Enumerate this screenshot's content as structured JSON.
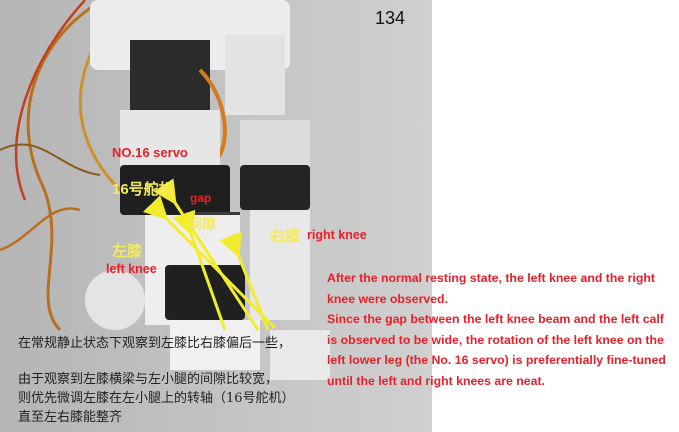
{
  "page_number": "134",
  "labels": {
    "servo_en": "NO.16 servo",
    "servo_cn": "16号舵机",
    "gap_en": "gap",
    "gap_cn": "间隙",
    "left_knee_cn": "左膝",
    "left_knee_en": "left knee",
    "right_knee_cn": "右膝",
    "right_knee_en": "right knee"
  },
  "chinese_text": {
    "line1": "在常规静止状态下观察到左膝比右膝偏后一些，",
    "line2": "由于观察到左膝横梁与左小腿的间隙比较宽，",
    "line3": "则优先微调左膝在左小腿上的转轴（16号舵机）",
    "line4": "直至左右膝能整齐"
  },
  "english_text": {
    "para1": "After the normal resting state, the left knee and the right knee were observed.",
    "para2": "Since the gap between the left knee beam and the left calf is observed to be wide, the rotation of the left knee on the left lower leg (the No. 16 servo) is preferentially fine-tuned until the left and right knees are neat."
  },
  "colors": {
    "red": "#e8202a",
    "yellow": "#f4ea5a",
    "arrow": "#f2ec2e"
  }
}
